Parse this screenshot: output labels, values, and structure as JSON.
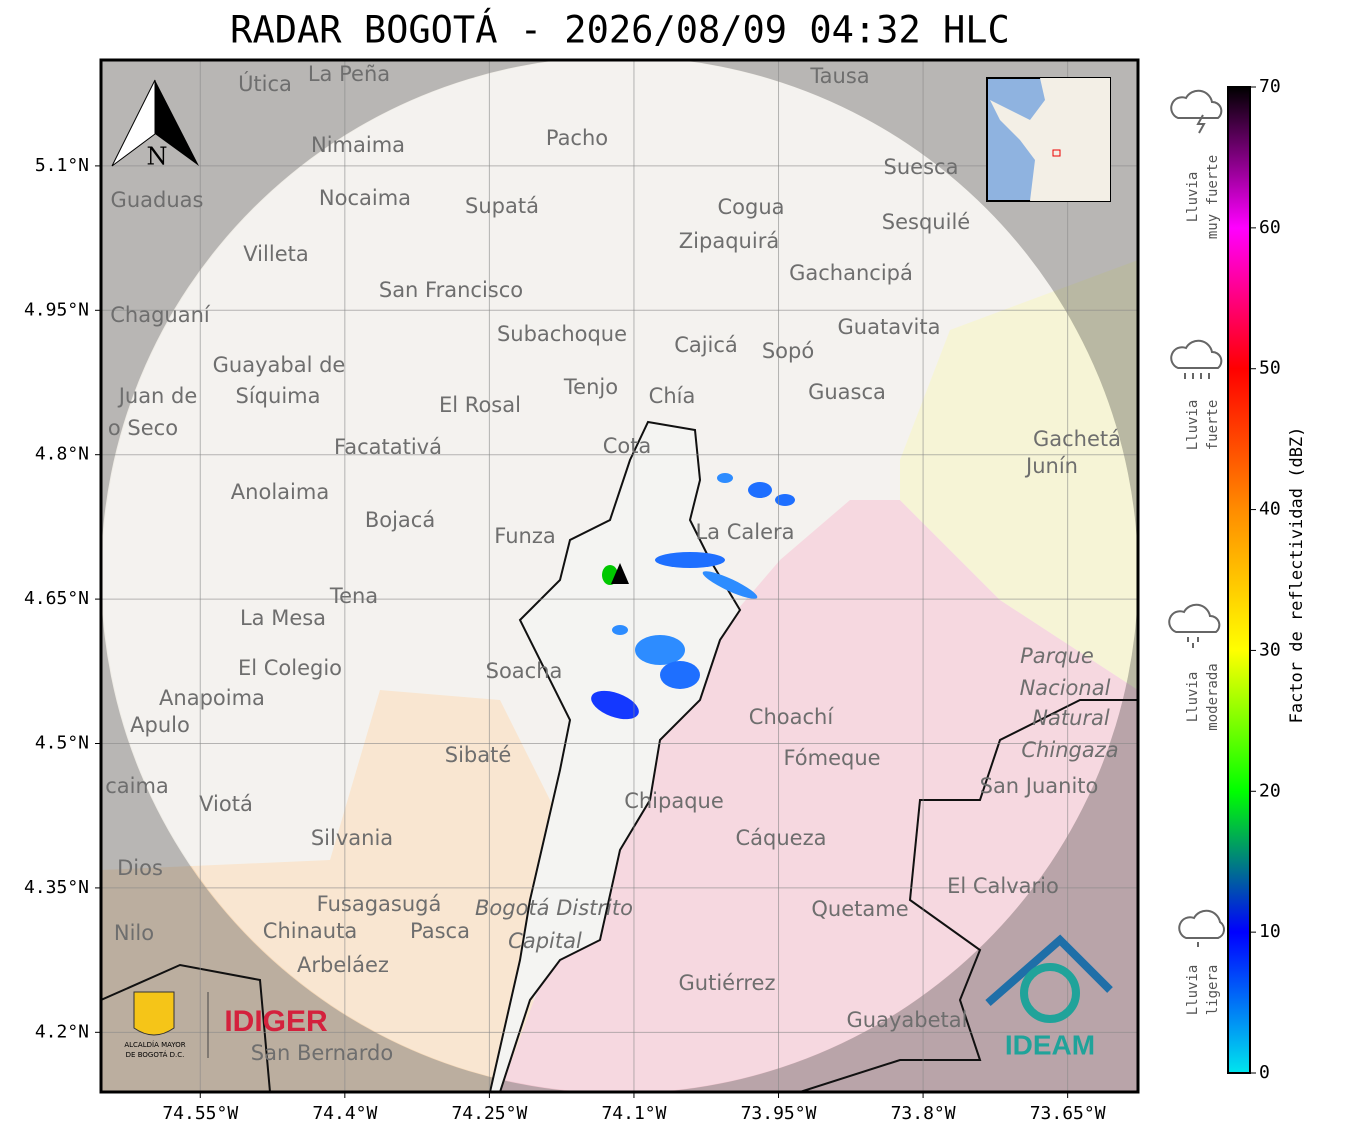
{
  "title": "RADAR BOGOTÁ - 2026/08/09 04:32 HLC",
  "map": {
    "xlim": [
      -74.653,
      -73.577
    ],
    "ylim": [
      4.138,
      5.21
    ],
    "xticks": [
      {
        "value": -74.55,
        "label": "74.55°W"
      },
      {
        "value": -74.4,
        "label": "74.4°W"
      },
      {
        "value": -74.25,
        "label": "74.25°W"
      },
      {
        "value": -74.1,
        "label": "74.1°W"
      },
      {
        "value": -73.95,
        "label": "73.95°W"
      },
      {
        "value": -73.8,
        "label": "73.8°W"
      },
      {
        "value": -73.65,
        "label": "73.65°W"
      }
    ],
    "yticks": [
      {
        "value": 5.1,
        "label": "5.1°N"
      },
      {
        "value": 4.95,
        "label": "4.95°N"
      },
      {
        "value": 4.8,
        "label": "4.8°N"
      },
      {
        "value": 4.65,
        "label": "4.65°N"
      },
      {
        "value": 4.5,
        "label": "4.5°N"
      },
      {
        "value": 4.35,
        "label": "4.35°N"
      },
      {
        "value": 4.2,
        "label": "4.2°N"
      }
    ]
  },
  "places": [
    "La Peña",
    "Útica",
    "Tausa",
    "Pacho",
    "Nimaima",
    "Suesca",
    "Guaduas",
    "Nocaima",
    "Supatá",
    "Cogua",
    "Sesquilé",
    "Zipaquirá",
    "Villeta",
    "Gachancipá",
    "San Francisco",
    "Chaguaní",
    "Guatavita",
    "Subachoque",
    "Cajicá",
    "Sopó",
    "Guayabal de",
    "Síquima",
    "Juan de",
    "Tenjo",
    "Chía",
    "Guasca",
    "El Rosal",
    "o Seco",
    "Gachetá",
    "Junín",
    "Facatativá",
    "Cota",
    "Anolaima",
    "Bojacá",
    "La Calera",
    "Funza",
    "Tena",
    "La Mesa",
    "Parque",
    "El Colegio",
    "Soacha",
    "Nacional",
    "Anapoima",
    "Natural",
    "Choachí",
    "Apulo",
    "Chingaza",
    "Sibaté",
    "Fómeque",
    "San Juanito",
    "caima",
    "Viotá",
    "Chipaque",
    "Silvania",
    "Cáqueza",
    "Dios",
    "El Calvario",
    "Fusagasugá",
    "Bogotá Distrito",
    "Quetame",
    "Nilo",
    "Chinauta",
    "Pasca",
    "Capital",
    "Arbeláez",
    "Gutiérrez",
    "Guayabetal",
    "San Bernardo"
  ],
  "north": "N",
  "colorbar": {
    "label": "Factor de reflectividad (dBZ)",
    "lim": [
      0,
      70
    ],
    "ticks": [
      0,
      10,
      20,
      30,
      40,
      50,
      60,
      70
    ],
    "colors": [
      "#00e5ee",
      "#0000ff",
      "#00ff00",
      "#ffff00",
      "#ff8c00",
      "#ff0000",
      "#ff00ff",
      "#000000"
    ]
  },
  "rain_levels": [
    [
      "Lluvia",
      "muy fuerte"
    ],
    [
      "Lluvia",
      "fuerte"
    ],
    [
      "Lluvia",
      "moderada"
    ],
    [
      "Lluvia",
      "ligera"
    ]
  ],
  "logos": {
    "alcaldia": [
      "ALCALDÍA MAYOR",
      "DE BOGOTÁ D.C."
    ],
    "idiger": "IDIGER",
    "ideam": "IDEAM"
  }
}
